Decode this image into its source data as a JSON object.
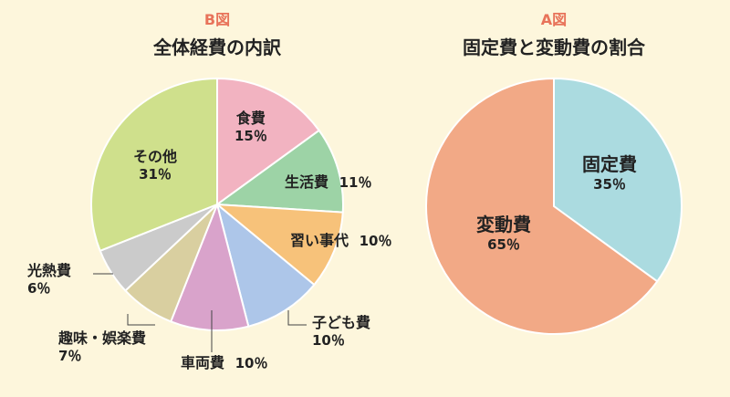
{
  "chart_data": [
    {
      "type": "pie",
      "label": "B図",
      "title": "全体経費の内訳",
      "slices": [
        {
          "name": "食費",
          "value": 15,
          "value_label": "15％",
          "color": "#f2b3c1"
        },
        {
          "name": "生活費",
          "value": 11,
          "value_label": "11％",
          "color": "#9dd3a6"
        },
        {
          "name": "習い事代",
          "value": 10,
          "value_label": "10％",
          "color": "#f7c27a"
        },
        {
          "name": "子ども費",
          "value": 10,
          "value_label": "10％",
          "color": "#adc6e9"
        },
        {
          "name": "車両費",
          "value": 10,
          "value_label": "10％",
          "color": "#d9a3cb"
        },
        {
          "name": "趣味・娯楽費",
          "value": 7,
          "value_label": "7％",
          "color": "#d9cfa0"
        },
        {
          "name": "光熱費",
          "value": 6,
          "value_label": "6％",
          "color": "#cbcbcb"
        },
        {
          "name": "その他",
          "value": 31,
          "value_label": "31％",
          "color": "#cfe08c"
        }
      ]
    },
    {
      "type": "pie",
      "label": "A図",
      "title": "固定費と変動費の割合",
      "slices": [
        {
          "name": "固定費",
          "value": 35,
          "value_label": "35％",
          "color": "#abdbe0"
        },
        {
          "name": "変動費",
          "value": 65,
          "value_label": "65％",
          "color": "#f2a986"
        }
      ]
    }
  ]
}
